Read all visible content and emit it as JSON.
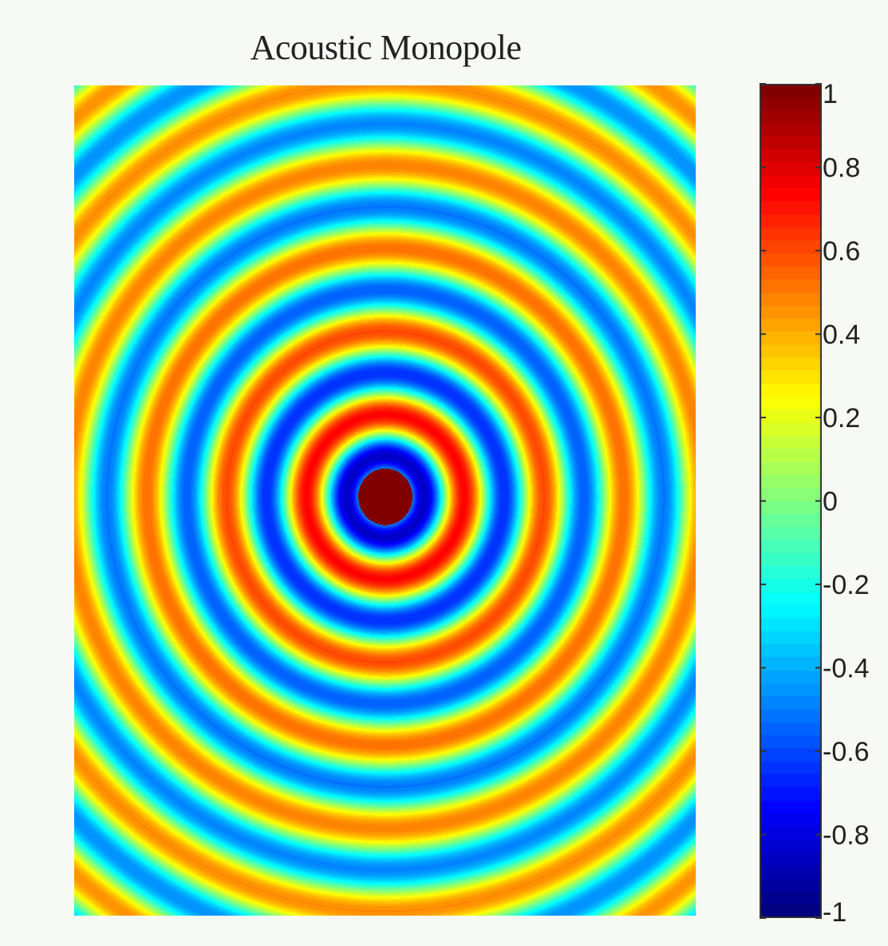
{
  "chart_data": {
    "type": "heatmap",
    "title": "Acoustic Monopole",
    "xlabel": "",
    "ylabel": "",
    "field": "cos(k * r) radial pressure pattern centred on the source",
    "colormap": "jet",
    "colorbar": {
      "range": [
        -1,
        1
      ],
      "levels": 64,
      "ticks": [
        1,
        0.8,
        0.6,
        0.4,
        0.2,
        0,
        -0.2,
        -0.4,
        -0.6,
        -0.8,
        -1
      ],
      "tick_labels": [
        "1",
        "0.8",
        "0.6",
        "0.4",
        "0.2",
        "0",
        "-0.2",
        "-0.4",
        "-0.6",
        "-0.8",
        "-1"
      ],
      "position": "right"
    },
    "source": {
      "x_fraction": 0.5,
      "y_fraction": 0.495
    },
    "wavelength_fraction_of_width": 0.128,
    "grid": false
  }
}
